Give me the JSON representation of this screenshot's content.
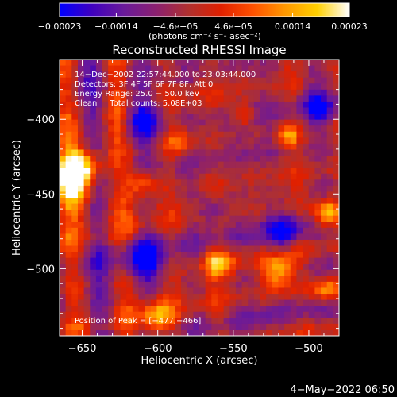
{
  "chart_data": {
    "type": "heatmap",
    "title": "Reconstructed RHESSI Image",
    "xlabel": "Heliocentric X (arcsec)",
    "ylabel": "Heliocentric Y (arcsec)",
    "xlim": [
      -665,
      -480
    ],
    "ylim": [
      -545,
      -360
    ],
    "xticks": [
      -650,
      -600,
      -550,
      -500
    ],
    "xtick_labels": [
      "−650",
      "−600",
      "−550",
      "−500"
    ],
    "yticks": [
      -400,
      -450,
      -500
    ],
    "ytick_labels": [
      "−400",
      "−450",
      "−500"
    ],
    "colorbar": {
      "range": [
        -0.00023,
        0.00023
      ],
      "tick_values": [
        -0.00023,
        -0.00014,
        -4.6e-05,
        4.6e-05,
        0.00014,
        0.00023
      ],
      "tick_labels": [
        "−0.00023",
        "−0.00014",
        "−4.6e−05",
        "4.6e−05",
        "0.00014",
        "0.00023"
      ],
      "units": "(photons cm⁻² s⁻¹ asec⁻²)"
    },
    "annotations": [
      "14−Dec−2002 22:57:44.000 to 23:03:44.000",
      "Detectors: 3F 4F 5F 6F 7F 8F, Att 0",
      "Energy Range: 25.0 − 50.0 keV",
      "Clean     Total counts: 5.08E+03"
    ],
    "peak_label": "Position of Peak = [−477,−466]",
    "peak_position": [
      -477,
      -466
    ],
    "grid": false,
    "legend": "colorbar-top",
    "colormap": [
      "#0000ff",
      "#3f00bf",
      "#6a1a9a",
      "#8b2070",
      "#b0302f",
      "#e02000",
      "#ff5000",
      "#ff9800",
      "#ffd000",
      "#ffffff"
    ],
    "background_color": "#000000"
  },
  "footer": {
    "date": "4−May−2022 06:50"
  }
}
